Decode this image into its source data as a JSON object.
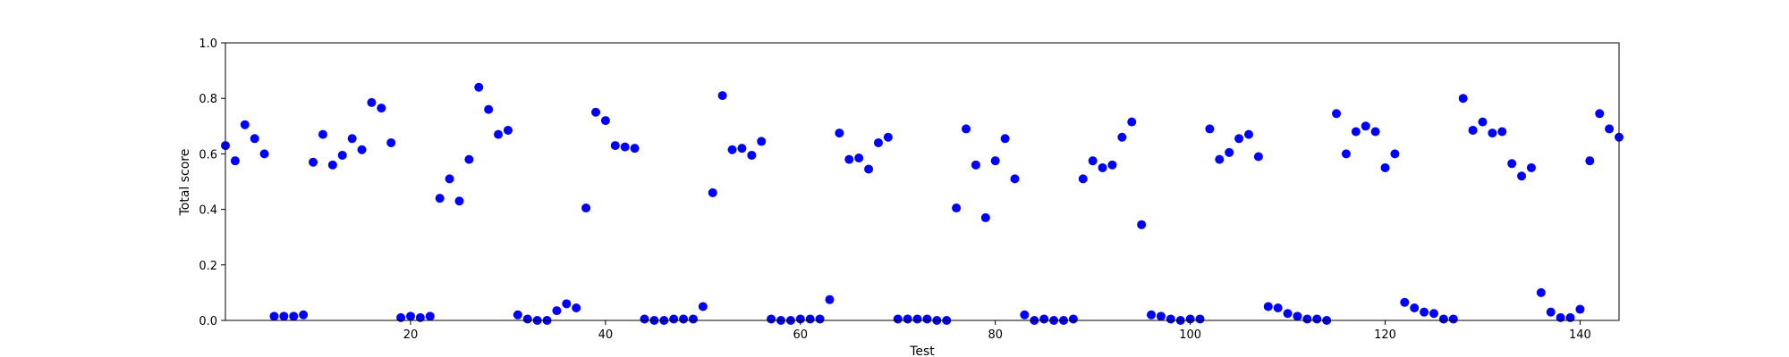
{
  "chart_data": {
    "type": "scatter",
    "xlabel": "Test",
    "ylabel": "Total score",
    "xlim": [
      1,
      144
    ],
    "ylim": [
      0.0,
      1.0
    ],
    "xticks": [
      20,
      40,
      60,
      80,
      100,
      120,
      140
    ],
    "yticks": [
      0.0,
      0.2,
      0.4,
      0.6,
      0.8,
      1.0
    ],
    "xtick_labels": [
      "20",
      "40",
      "60",
      "80",
      "100",
      "120",
      "140"
    ],
    "ytick_labels": [
      "0.0",
      "0.2",
      "0.4",
      "0.6",
      "0.8",
      "1.0"
    ],
    "grid": false,
    "marker_color": "#0000ff",
    "x": [
      1,
      2,
      3,
      4,
      5,
      6,
      7,
      8,
      9,
      10,
      11,
      12,
      13,
      14,
      15,
      16,
      17,
      18,
      19,
      20,
      21,
      22,
      23,
      24,
      25,
      26,
      27,
      28,
      29,
      30,
      31,
      32,
      33,
      34,
      35,
      36,
      37,
      38,
      39,
      40,
      41,
      42,
      43,
      44,
      45,
      46,
      47,
      48,
      49,
      50,
      51,
      52,
      53,
      54,
      55,
      56,
      57,
      58,
      59,
      60,
      61,
      62,
      63,
      64,
      65,
      66,
      67,
      68,
      69,
      70,
      71,
      72,
      73,
      74,
      75,
      76,
      77,
      78,
      79,
      80,
      81,
      82,
      83,
      84,
      85,
      86,
      87,
      88,
      89,
      90,
      91,
      92,
      93,
      94,
      95,
      96,
      97,
      98,
      99,
      100,
      101,
      102,
      103,
      104,
      105,
      106,
      107,
      108,
      109,
      110,
      111,
      112,
      113,
      114,
      115,
      116,
      117,
      118,
      119,
      120,
      121,
      122,
      123,
      124,
      125,
      126,
      127,
      128,
      129,
      130,
      131,
      132,
      133,
      134,
      135,
      136,
      137,
      138,
      139,
      140,
      141,
      142,
      143,
      144
    ],
    "y": [
      0.63,
      0.575,
      0.705,
      0.655,
      0.6,
      0.015,
      0.015,
      0.015,
      0.02,
      0.57,
      0.67,
      0.56,
      0.595,
      0.655,
      0.615,
      0.785,
      0.765,
      0.64,
      0.01,
      0.015,
      0.01,
      0.015,
      0.44,
      0.51,
      0.43,
      0.58,
      0.84,
      0.76,
      0.67,
      0.685,
      0.02,
      0.005,
      0.0,
      0.0,
      0.035,
      0.06,
      0.045,
      0.405,
      0.75,
      0.72,
      0.63,
      0.625,
      0.62,
      0.005,
      0.0,
      0.0,
      0.005,
      0.005,
      0.005,
      0.05,
      0.46,
      0.81,
      0.615,
      0.62,
      0.595,
      0.645,
      0.005,
      0.0,
      0.0,
      0.005,
      0.005,
      0.005,
      0.075,
      0.675,
      0.58,
      0.585,
      0.545,
      0.64,
      0.66,
      0.005,
      0.005,
      0.005,
      0.005,
      0.0,
      0.0,
      0.405,
      0.69,
      0.56,
      0.37,
      0.575,
      0.655,
      0.51,
      0.02,
      0.0,
      0.005,
      0.0,
      0.0,
      0.005,
      0.51,
      0.575,
      0.55,
      0.56,
      0.66,
      0.715,
      0.345,
      0.02,
      0.015,
      0.005,
      0.0,
      0.005,
      0.005,
      0.69,
      0.58,
      0.605,
      0.655,
      0.67,
      0.59,
      0.05,
      0.045,
      0.025,
      0.015,
      0.005,
      0.005,
      0.0,
      0.745,
      0.6,
      0.68,
      0.7,
      0.68,
      0.55,
      0.6,
      0.065,
      0.045,
      0.03,
      0.025,
      0.005,
      0.005,
      0.8,
      0.685,
      0.715,
      0.675,
      0.68,
      0.565,
      0.52,
      0.55,
      0.1,
      0.03,
      0.01,
      0.01,
      0.04,
      0.575,
      0.745,
      0.69,
      0.66
    ]
  }
}
